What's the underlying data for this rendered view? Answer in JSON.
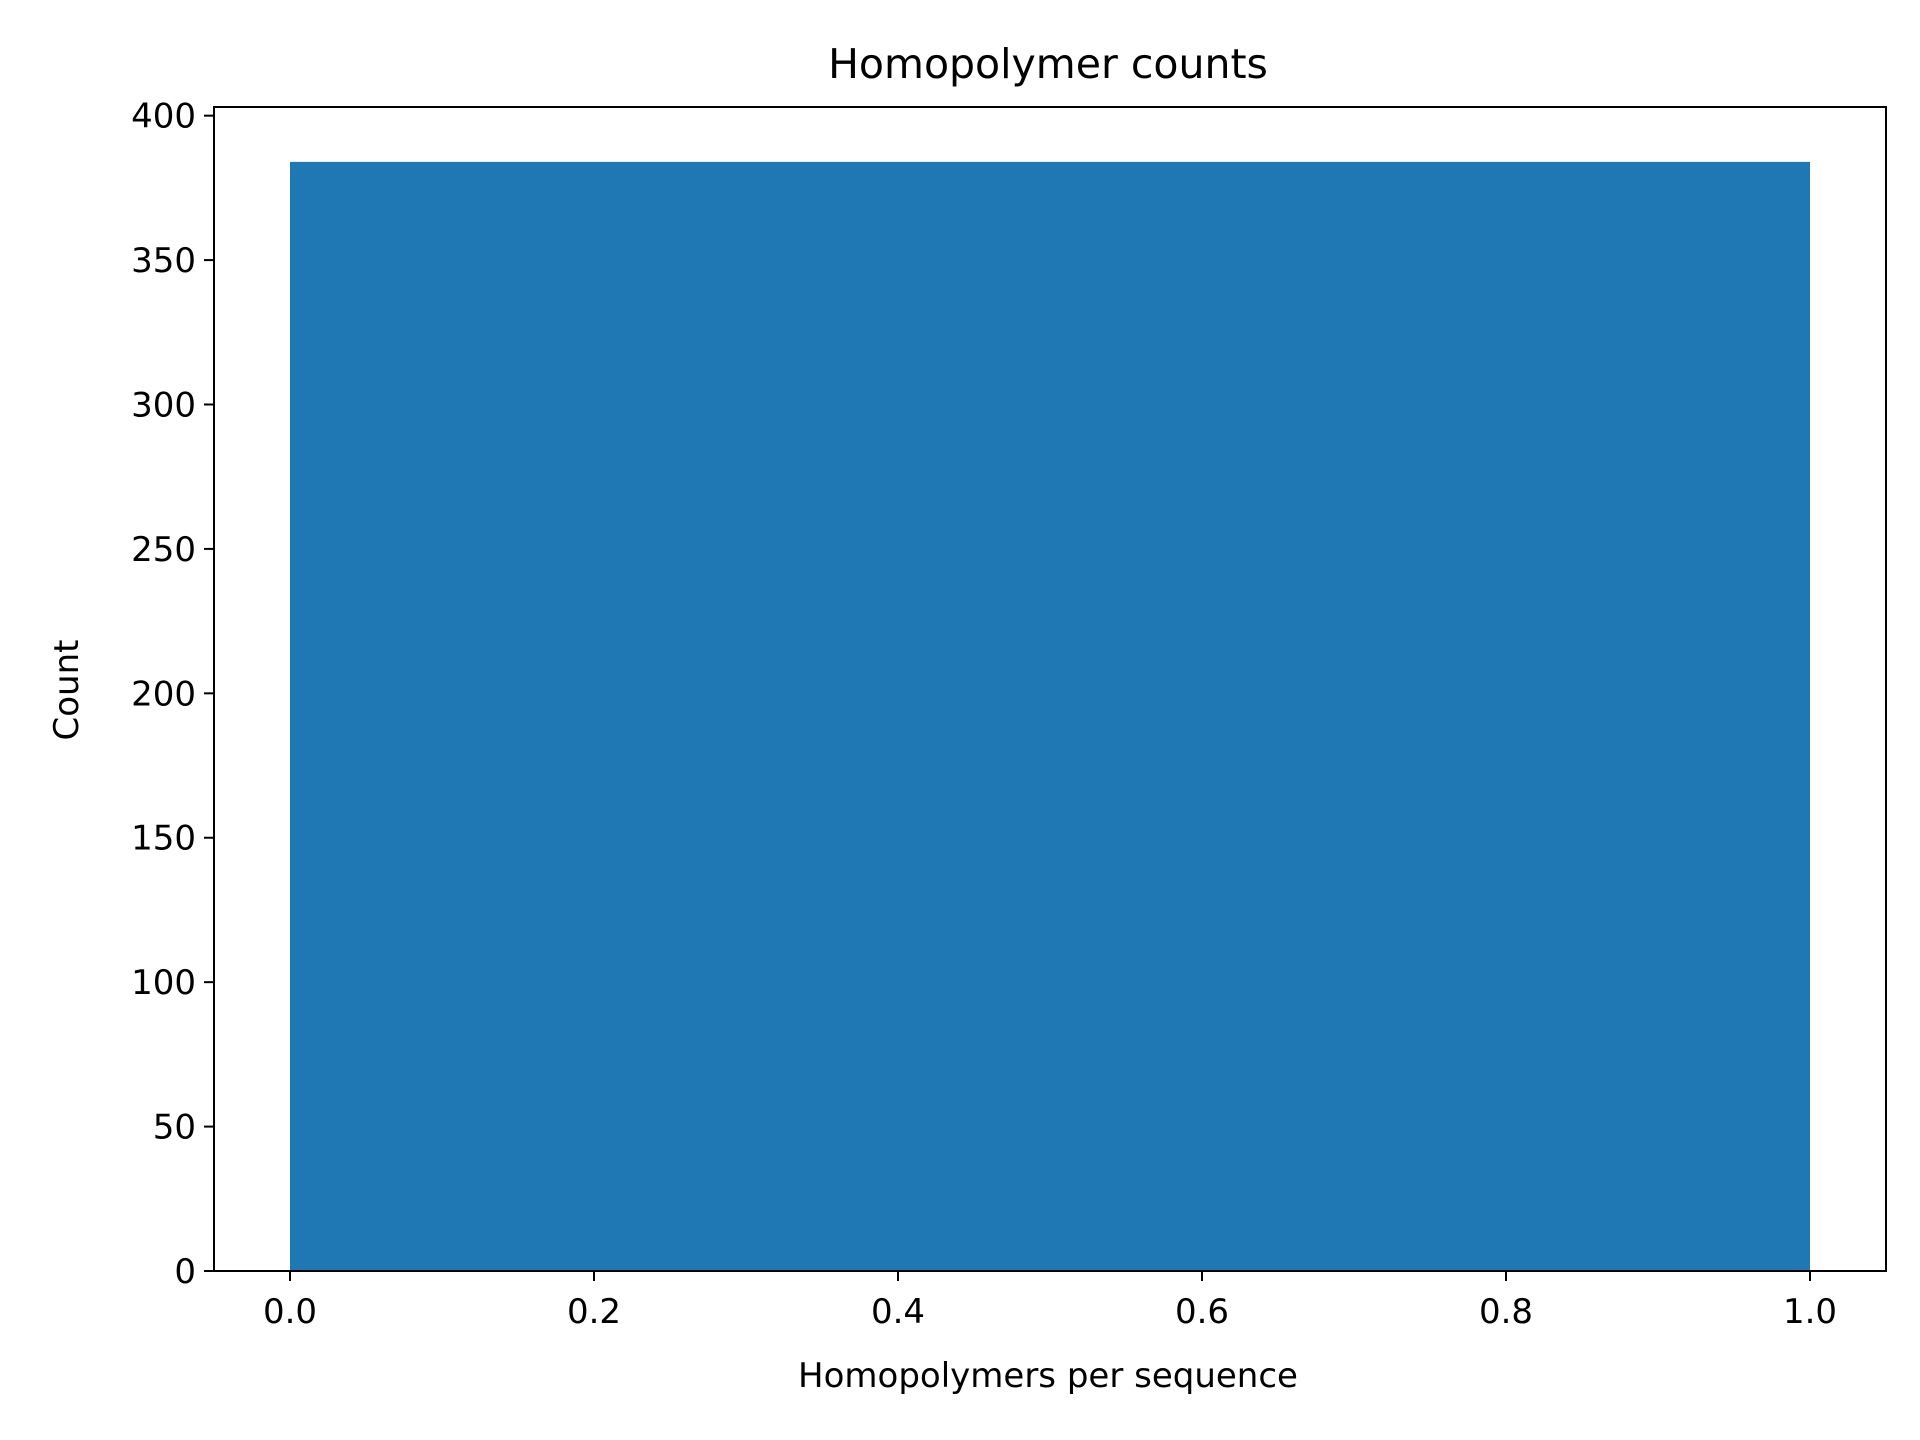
{
  "chart_data": {
    "type": "bar",
    "title": "Homopolymer counts",
    "xlabel": "Homopolymers per sequence",
    "ylabel": "Count",
    "bins": [
      {
        "x_start": 0.0,
        "x_end": 1.0,
        "value": 384
      }
    ],
    "xlim": [
      -0.05,
      1.05
    ],
    "ylim": [
      0,
      403
    ],
    "x_ticks": [
      0.0,
      0.2,
      0.4,
      0.6,
      0.8,
      1.0
    ],
    "x_tick_labels": [
      "0.0",
      "0.2",
      "0.4",
      "0.6",
      "0.8",
      "1.0"
    ],
    "y_ticks": [
      0,
      50,
      100,
      150,
      200,
      250,
      300,
      350,
      400
    ],
    "y_tick_labels": [
      "0",
      "50",
      "100",
      "150",
      "200",
      "250",
      "300",
      "350",
      "400"
    ],
    "bar_color": "#1f77b4",
    "grid": false,
    "legend": "none"
  }
}
